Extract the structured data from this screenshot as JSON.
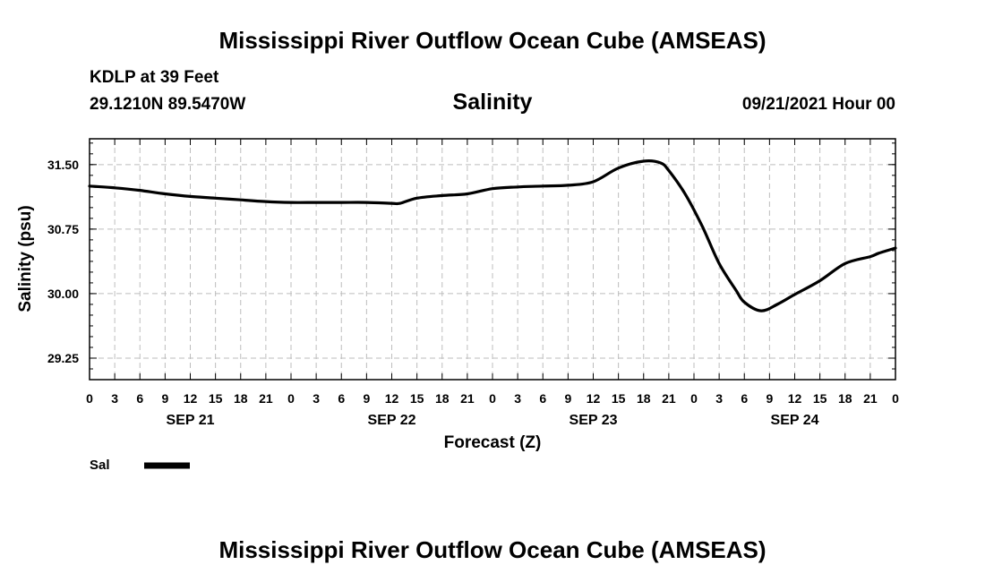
{
  "header": {
    "title": "Mississippi River Outflow Ocean Cube (AMSEAS)",
    "station": "KDLP at 39 Feet",
    "coords": "29.1210N  89.5470W",
    "subtitle": "Salinity",
    "datetime": "09/21/2021 Hour 00"
  },
  "footer": {
    "title": "Mississippi River Outflow Ocean Cube (AMSEAS)"
  },
  "chart_data": {
    "type": "line",
    "title": "Salinity",
    "ylabel": "Salinity (psu)",
    "xlabel": "Forecast (Z)",
    "ylim": [
      29.0,
      31.8
    ],
    "yticks": [
      29.25,
      30.0,
      30.75,
      31.5
    ],
    "ytick_labels": [
      "29.25",
      "30.00",
      "30.75",
      "31.50"
    ],
    "xlim": [
      0,
      96
    ],
    "x_tick_hours": [
      0,
      3,
      6,
      9,
      12,
      15,
      18,
      21,
      24,
      27,
      30,
      33,
      36,
      39,
      42,
      45,
      48,
      51,
      54,
      57,
      60,
      63,
      66,
      69,
      72,
      75,
      78,
      81,
      84,
      87,
      90,
      93,
      96
    ],
    "x_tick_labels": [
      "0",
      "3",
      "6",
      "9",
      "12",
      "15",
      "18",
      "21",
      "0",
      "3",
      "6",
      "9",
      "12",
      "15",
      "18",
      "21",
      "0",
      "3",
      "6",
      "9",
      "12",
      "15",
      "18",
      "21",
      "0",
      "3",
      "6",
      "9",
      "12",
      "15",
      "18",
      "21",
      "0"
    ],
    "day_labels": [
      {
        "hour": 12,
        "label": "SEP 21"
      },
      {
        "hour": 36,
        "label": "SEP 22"
      },
      {
        "hour": 60,
        "label": "SEP 23"
      },
      {
        "hour": 84,
        "label": "SEP 24"
      }
    ],
    "grid": true,
    "legend": {
      "position": "bottom-left",
      "label": "Sal"
    },
    "series": [
      {
        "name": "Sal",
        "x": [
          0,
          3,
          6,
          9,
          12,
          15,
          18,
          21,
          24,
          27,
          30,
          33,
          36,
          37,
          39,
          42,
          45,
          48,
          51,
          54,
          57,
          60,
          63,
          66,
          68,
          69,
          71,
          73,
          75,
          77,
          78,
          80,
          82,
          84,
          87,
          90,
          93,
          94,
          96
        ],
        "values": [
          31.25,
          31.23,
          31.2,
          31.16,
          31.13,
          31.11,
          31.09,
          31.07,
          31.06,
          31.06,
          31.06,
          31.06,
          31.05,
          31.05,
          31.11,
          31.14,
          31.16,
          31.22,
          31.24,
          31.25,
          31.26,
          31.3,
          31.46,
          31.54,
          31.52,
          31.43,
          31.15,
          30.78,
          30.35,
          30.04,
          29.9,
          29.8,
          29.88,
          29.99,
          30.15,
          30.35,
          30.43,
          30.47,
          30.53
        ]
      }
    ]
  }
}
